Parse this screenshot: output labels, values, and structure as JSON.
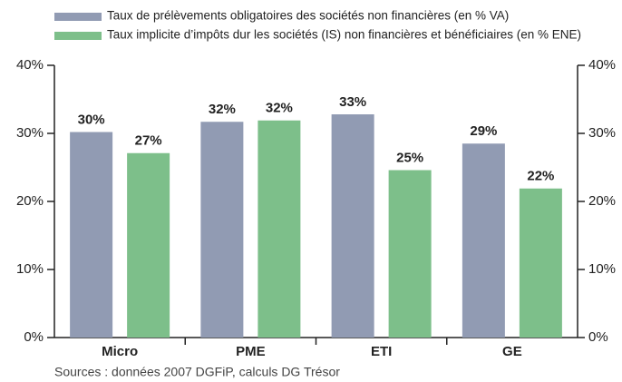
{
  "chart_data": {
    "type": "bar",
    "categories": [
      "Micro",
      "PME",
      "ETI",
      "GE"
    ],
    "series": [
      {
        "name": "Taux de prélèvements obligatoires des sociétés non financières (en % VA)",
        "color": "#919bb3",
        "values": [
          30.2,
          31.7,
          32.8,
          28.5
        ],
        "value_labels": [
          "30%",
          "32%",
          "33%",
          "29%"
        ]
      },
      {
        "name": "Taux implicite d’impôts dur les sociétés (IS) non financières et bénéficiaires (en % ENE)",
        "color": "#7dbf8a",
        "values": [
          27.1,
          31.9,
          24.6,
          21.9
        ],
        "value_labels": [
          "27%",
          "32%",
          "25%",
          "22%"
        ]
      }
    ],
    "ylim": [
      0,
      40
    ],
    "yticks": [
      {
        "value": 0,
        "label": "0%"
      },
      {
        "value": 10,
        "label": "10%"
      },
      {
        "value": 20,
        "label": "20%"
      },
      {
        "value": 30,
        "label": "30%"
      },
      {
        "value": 40,
        "label": "40%"
      }
    ],
    "y2lim": [
      0,
      40
    ],
    "y2ticks": [
      {
        "value": 0,
        "label": "0%"
      },
      {
        "value": 10,
        "label": "10%"
      },
      {
        "value": 20,
        "label": "20%"
      },
      {
        "value": 30,
        "label": "30%"
      },
      {
        "value": 40,
        "label": "40%"
      }
    ],
    "source": "Sources : données 2007 DGFiP, calculs DG Trésor"
  }
}
